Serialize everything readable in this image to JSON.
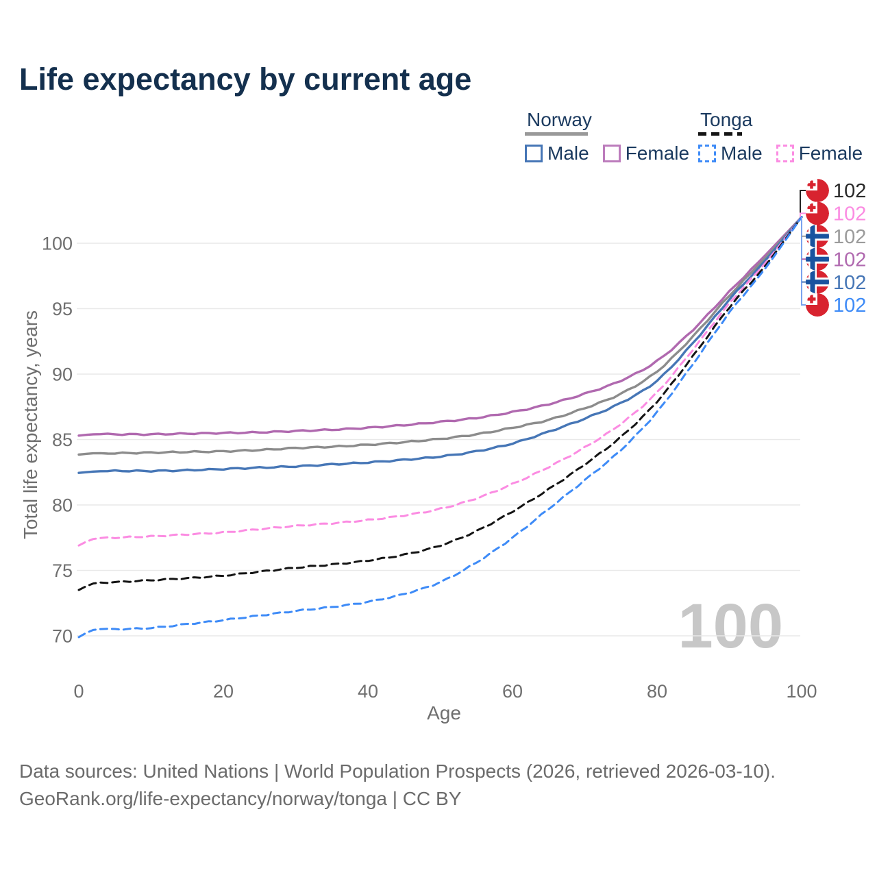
{
  "page": {
    "title": "Life expectancy by current age",
    "watermark_age": "100",
    "footer": {
      "line1": "Data sources: United Nations | World Population Prospects (2026, retrieved 2026-03-10).",
      "line2": "GeoRank.org/life-expectancy/norway/tonga | CC BY"
    }
  },
  "legend": {
    "groups": [
      {
        "label": "Norway",
        "line_style": "solid",
        "line_color": "#999999",
        "items": [
          {
            "label": "Male",
            "color": "#4676b6",
            "dashed": false
          },
          {
            "label": "Female",
            "color": "#bc7cbc",
            "dashed": false
          }
        ]
      },
      {
        "label": "Tonga",
        "line_style": "dashed",
        "line_color": "#141414",
        "items": [
          {
            "label": "Male",
            "color": "#3e8bf7",
            "dashed": true
          },
          {
            "label": "Female",
            "color": "#fb8ce2",
            "dashed": true
          }
        ]
      }
    ]
  },
  "chart_data": {
    "type": "line",
    "title": "Life expectancy by current age",
    "xlabel": "Age",
    "ylabel": "Total life expectancy, years",
    "xlim": [
      0,
      100
    ],
    "ylim": [
      68.5,
      103.5
    ],
    "xticks": [
      0,
      20,
      40,
      60,
      80,
      100
    ],
    "yticks": [
      70,
      75,
      80,
      85,
      90,
      95,
      100
    ],
    "grid": true,
    "legend_position": "top-right",
    "anchor_ages": [
      0,
      2,
      5,
      10,
      15,
      20,
      25,
      30,
      35,
      40,
      45,
      50,
      55,
      60,
      65,
      70,
      75,
      80,
      85,
      90,
      95,
      100
    ],
    "series": [
      {
        "id": "norway-female",
        "name": "Norway Female",
        "country": "Norway",
        "sex": "female",
        "color": "#b069af",
        "dashed": false,
        "values": [
          85.3,
          85.4,
          85.4,
          85.4,
          85.45,
          85.5,
          85.55,
          85.65,
          85.75,
          85.9,
          86.1,
          86.35,
          86.65,
          87.1,
          87.7,
          88.5,
          89.5,
          91.0,
          93.4,
          96.3,
          99.1,
          102
        ]
      },
      {
        "id": "norway-total",
        "name": "Norway Both sexes",
        "country": "Norway",
        "sex": "total",
        "color": "#8c8c8c",
        "dashed": false,
        "values": [
          83.85,
          83.95,
          83.95,
          84.0,
          84.05,
          84.1,
          84.2,
          84.35,
          84.45,
          84.6,
          84.8,
          85.05,
          85.4,
          85.9,
          86.5,
          87.4,
          88.5,
          90.2,
          92.9,
          96.0,
          98.9,
          102
        ]
      },
      {
        "id": "norway-male",
        "name": "Norway Male",
        "country": "Norway",
        "sex": "male",
        "color": "#4676b6",
        "dashed": false,
        "values": [
          82.45,
          82.55,
          82.6,
          82.6,
          82.65,
          82.75,
          82.85,
          82.95,
          83.1,
          83.25,
          83.45,
          83.7,
          84.1,
          84.7,
          85.6,
          86.6,
          87.8,
          89.5,
          92.4,
          95.7,
          98.7,
          102
        ]
      },
      {
        "id": "tonga-female",
        "name": "Tonga Female",
        "country": "Tonga",
        "sex": "female",
        "color": "#fb8ce2",
        "dashed": true,
        "values": [
          76.9,
          77.4,
          77.5,
          77.6,
          77.75,
          77.9,
          78.15,
          78.4,
          78.6,
          78.85,
          79.2,
          79.7,
          80.5,
          81.6,
          82.9,
          84.4,
          86.2,
          88.6,
          91.9,
          95.4,
          98.5,
          102
        ]
      },
      {
        "id": "tonga-total",
        "name": "Tonga Both sexes",
        "country": "Tonga",
        "sex": "total",
        "color": "#141414",
        "dashed": true,
        "values": [
          73.5,
          74.0,
          74.1,
          74.25,
          74.4,
          74.6,
          74.9,
          75.2,
          75.45,
          75.75,
          76.2,
          76.9,
          78.0,
          79.5,
          81.2,
          83.1,
          85.2,
          87.9,
          91.4,
          95.1,
          98.3,
          102
        ]
      },
      {
        "id": "tonga-male",
        "name": "Tonga Male",
        "country": "Tonga",
        "sex": "male",
        "color": "#3e8bf7",
        "dashed": true,
        "values": [
          69.9,
          70.45,
          70.5,
          70.6,
          70.9,
          71.2,
          71.55,
          71.9,
          72.2,
          72.6,
          73.2,
          74.1,
          75.6,
          77.5,
          79.7,
          81.9,
          84.2,
          87.1,
          90.8,
          94.7,
          98.1,
          102
        ]
      }
    ],
    "end_labels": [
      {
        "flag": "tonga",
        "series": "tonga-total",
        "value": "102",
        "color": "#2a2a2a"
      },
      {
        "flag": "tonga",
        "series": "tonga-female",
        "value": "102",
        "color": "#fb8ce2"
      },
      {
        "flag": "norway",
        "series": "norway-total",
        "value": "102",
        "color": "#9b9b9b"
      },
      {
        "flag": "norway",
        "series": "norway-female",
        "value": "102",
        "color": "#b069af"
      },
      {
        "flag": "norway",
        "series": "norway-male",
        "value": "102",
        "color": "#4676b6"
      },
      {
        "flag": "tonga",
        "series": "tonga-male",
        "value": "102",
        "color": "#3e8bf7"
      }
    ]
  },
  "colors": {
    "title_text": "#14304e",
    "legend_text": "#1b3a5f",
    "axis_text": "#6f6f6f",
    "gridline": "#e9e9e9",
    "watermark": "#c7c7c7",
    "footer_text": "#6b6b6b",
    "flag_red": "#d8232f",
    "flag_blue": "#19539f",
    "leader_black": "#222222",
    "leader_blue": "#7aa3ee"
  }
}
